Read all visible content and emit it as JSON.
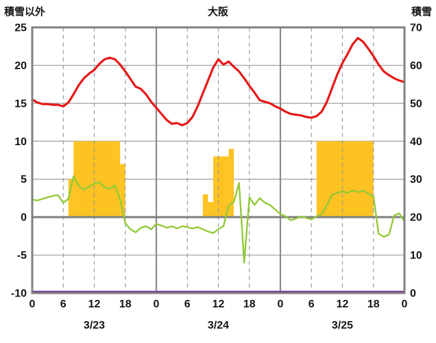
{
  "chart_data": {
    "type": "line",
    "title": "大阪",
    "left_axis": {
      "title": "積雪以外",
      "min": -10,
      "max": 25,
      "ticks": [
        25,
        20,
        15,
        10,
        5,
        0,
        -5,
        -10
      ]
    },
    "right_axis": {
      "title": "積雪",
      "min": 0,
      "max": 70,
      "ticks": [
        70,
        60,
        50,
        40,
        30,
        20,
        10,
        0
      ]
    },
    "x_axis": {
      "unit": "hour",
      "range": [
        0,
        72
      ],
      "tick_hours": [
        0,
        6,
        12,
        18,
        24,
        30,
        36,
        42,
        48,
        54,
        60,
        66,
        72
      ],
      "tick_labels": [
        "0",
        "6",
        "12",
        "18",
        "0",
        "6",
        "12",
        "18",
        "0",
        "6",
        "12",
        "18",
        "0"
      ],
      "dates": [
        {
          "label": "3/23",
          "center_hour": 12
        },
        {
          "label": "3/24",
          "center_hour": 36
        },
        {
          "label": "3/25",
          "center_hour": 60
        }
      ]
    },
    "grid": {
      "h_solid_left_values": [
        20,
        15,
        10,
        5,
        -5
      ],
      "zero_line_left_value": 0,
      "v_dashed_hours": [
        6,
        12,
        18,
        30,
        36,
        42,
        54,
        60,
        66
      ],
      "v_solid_hours": [
        24,
        48
      ]
    },
    "bars": {
      "name": "yellow_bars",
      "axis": "left",
      "color": "#fcc323",
      "segments": [
        {
          "start": 7,
          "end": 8,
          "value": 5
        },
        {
          "start": 8,
          "end": 17,
          "value": 10
        },
        {
          "start": 17,
          "end": 18,
          "value": 7
        },
        {
          "start": 33,
          "end": 34,
          "value": 3
        },
        {
          "start": 34,
          "end": 35,
          "value": 2
        },
        {
          "start": 35,
          "end": 38,
          "value": 8
        },
        {
          "start": 38,
          "end": 39,
          "value": 9
        },
        {
          "start": 55,
          "end": 66,
          "value": 10
        }
      ]
    },
    "series": [
      {
        "name": "red_line",
        "axis": "left",
        "color": "#e61717",
        "width": 3.2,
        "values": [
          15.5,
          15.1,
          14.9,
          14.9,
          14.8,
          14.8,
          14.6,
          15.1,
          16.2,
          17.4,
          18.3,
          18.9,
          19.4,
          20.2,
          20.8,
          21.0,
          20.8,
          20.1,
          19.2,
          18.2,
          17.2,
          16.9,
          16.2,
          15.2,
          14.4,
          13.6,
          12.8,
          12.3,
          12.4,
          12.1,
          12.4,
          13.2,
          14.6,
          16.3,
          18.0,
          19.7,
          20.8,
          20.1,
          20.5,
          19.8,
          19.2,
          18.3,
          17.3,
          16.4,
          15.4,
          15.2,
          15.0,
          14.6,
          14.3,
          13.9,
          13.6,
          13.5,
          13.4,
          13.2,
          13.1,
          13.3,
          13.9,
          15.2,
          17.0,
          18.8,
          20.3,
          21.5,
          22.8,
          23.6,
          23.1,
          22.2,
          21.2,
          20.1,
          19.2,
          18.7,
          18.3,
          18.0,
          17.8
        ]
      },
      {
        "name": "green_line",
        "axis": "left",
        "color": "#93c939",
        "width": 2.4,
        "values": [
          2.3,
          2.2,
          2.4,
          2.6,
          2.8,
          2.9,
          1.9,
          2.4,
          5.4,
          4.1,
          3.6,
          4.0,
          4.4,
          4.6,
          3.9,
          3.7,
          4.2,
          2.3,
          -0.8,
          -1.6,
          -2.0,
          -1.4,
          -1.2,
          -1.6,
          -0.9,
          -1.1,
          -1.4,
          -1.2,
          -1.5,
          -1.2,
          -1.3,
          -1.5,
          -1.3,
          -1.6,
          -1.9,
          -2.1,
          -1.6,
          -1.2,
          1.5,
          2.0,
          4.5,
          -6.0,
          2.6,
          1.6,
          2.5,
          1.9,
          1.6,
          1.0,
          0.4,
          0.1,
          -0.4,
          -0.2,
          0.1,
          -0.1,
          -0.3,
          0.1,
          0.4,
          1.6,
          2.9,
          3.2,
          3.4,
          3.2,
          3.5,
          3.3,
          3.5,
          3.1,
          2.7,
          -2.2,
          -2.6,
          -2.3,
          0.2,
          0.5,
          -0.6
        ]
      },
      {
        "name": "snow_depth",
        "axis": "right",
        "color": "#7030a0",
        "width": 2.4,
        "x": [
          0,
          72
        ],
        "values": [
          0,
          0
        ]
      }
    ]
  }
}
